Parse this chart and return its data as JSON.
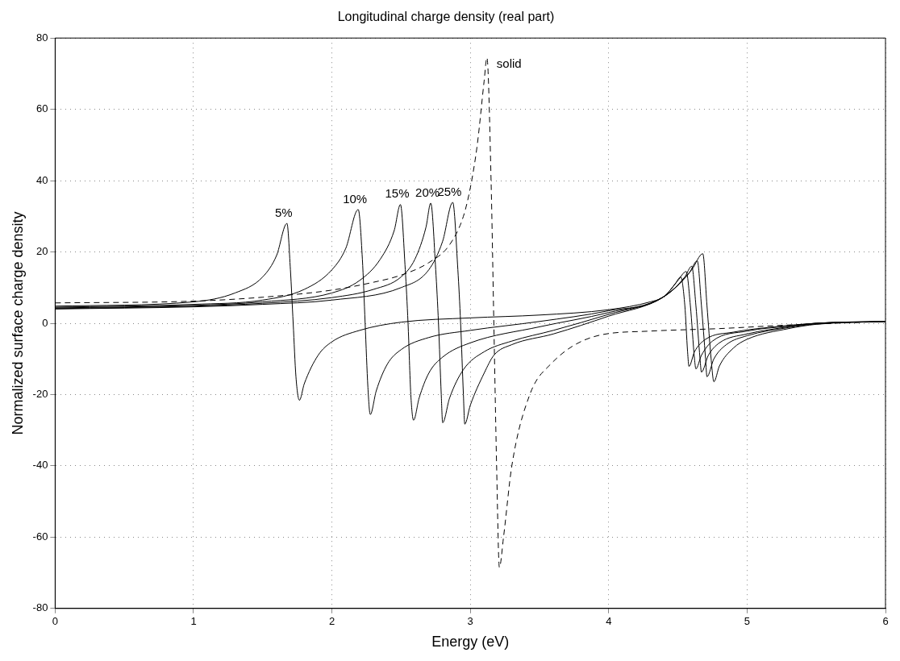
{
  "chart_data": {
    "type": "line",
    "title": "Longitudinal charge density (real part)",
    "xlabel": "Energy (eV)",
    "ylabel": "Normalized surface charge density",
    "xlim": [
      0,
      6
    ],
    "xticks": [
      0,
      1,
      2,
      3,
      4,
      5,
      6
    ],
    "ylim": [
      -80,
      80
    ],
    "yticks": [
      -80,
      -60,
      -40,
      -20,
      0,
      20,
      40,
      60,
      80
    ],
    "grid": true,
    "marker": "none",
    "series": [
      {
        "name": "5%",
        "color": "#000000",
        "line_style": "solid",
        "x": [
          0,
          1,
          1.3,
          1.5,
          1.6,
          1.675,
          1.7,
          1.72,
          1.74,
          1.765,
          1.8,
          1.9,
          2,
          2.2,
          2.5,
          3,
          3.5,
          4,
          4.3,
          4.4,
          4.48,
          4.52,
          4.55,
          4.57,
          4.58,
          4.62,
          4.7,
          4.9,
          5.2,
          5.5,
          6
        ],
        "values": [
          4.8,
          6,
          8.5,
          13,
          19,
          28,
          15,
          0,
          -15,
          -21.6,
          -17,
          -9,
          -5.2,
          -2,
          0.3,
          1.5,
          2.3,
          3.8,
          6,
          7.5,
          11,
          13,
          5,
          -8,
          -12.1,
          -8,
          -4.5,
          -2.5,
          -1,
          0,
          0.5
        ]
      },
      {
        "name": "10%",
        "color": "#000000",
        "line_style": "solid",
        "x": [
          0,
          1,
          1.5,
          1.8,
          2,
          2.1,
          2.19,
          2.22,
          2.24,
          2.26,
          2.277,
          2.32,
          2.4,
          2.5,
          2.7,
          3,
          3.5,
          4,
          4.4,
          4.5,
          4.56,
          4.59,
          4.62,
          4.63,
          4.67,
          4.75,
          5,
          5.3,
          5.5,
          6
        ],
        "values": [
          4.5,
          5.3,
          6.5,
          9.5,
          15,
          21,
          31.9,
          18,
          0,
          -18,
          -25.6,
          -19,
          -11.5,
          -7.4,
          -4,
          -2,
          0.5,
          3.5,
          7.5,
          12,
          14.5,
          5,
          -10,
          -12.8,
          -9,
          -5,
          -2.2,
          -0.8,
          0,
          0.5
        ]
      },
      {
        "name": "15%",
        "color": "#000000",
        "line_style": "solid",
        "x": [
          0,
          1,
          1.5,
          2,
          2.2,
          2.35,
          2.45,
          2.495,
          2.53,
          2.55,
          2.57,
          2.59,
          2.63,
          2.7,
          2.8,
          3,
          3.5,
          4,
          4.4,
          4.55,
          4.6,
          4.63,
          4.66,
          4.67,
          4.72,
          4.8,
          5,
          5.3,
          5.5,
          6
        ],
        "values": [
          4.3,
          5,
          6,
          8.5,
          12,
          18,
          26,
          33.3,
          15,
          0,
          -20,
          -27.2,
          -21,
          -14,
          -9.5,
          -5.5,
          -1,
          3,
          7.5,
          13,
          16,
          5,
          -10,
          -13.7,
          -9,
          -5.5,
          -3,
          -1,
          0,
          0.5
        ]
      },
      {
        "name": "20%",
        "color": "#000000",
        "line_style": "solid",
        "x": [
          0,
          1,
          1.5,
          2,
          2.3,
          2.5,
          2.6,
          2.68,
          2.714,
          2.75,
          2.77,
          2.79,
          2.8,
          2.85,
          2.95,
          3.1,
          3.3,
          3.6,
          4,
          4.4,
          4.58,
          4.64,
          4.67,
          4.7,
          4.71,
          4.76,
          4.85,
          5,
          5.3,
          5.5,
          6
        ],
        "values": [
          4.1,
          4.8,
          5.6,
          7.2,
          9.5,
          13,
          18,
          27,
          33.7,
          15,
          0,
          -20,
          -27.9,
          -21,
          -13,
          -8,
          -5,
          -2,
          2.5,
          7.5,
          14,
          17.5,
          5,
          -10,
          -15,
          -10,
          -6,
          -3.5,
          -1.2,
          -0.2,
          0.5
        ]
      },
      {
        "name": "25%",
        "color": "#000000",
        "line_style": "solid",
        "x": [
          0,
          1,
          1.5,
          2,
          2.5,
          2.7,
          2.8,
          2.873,
          2.91,
          2.93,
          2.95,
          2.96,
          3,
          3.1,
          3.17,
          3.3,
          3.6,
          4,
          4.4,
          4.6,
          4.68,
          4.71,
          4.74,
          4.76,
          4.8,
          4.9,
          5,
          5.3,
          5.5,
          6
        ],
        "values": [
          4,
          4.6,
          5.3,
          6.5,
          10,
          15,
          23,
          33.9,
          15,
          0,
          -20,
          -28.3,
          -23,
          -14,
          -9,
          -6,
          -3,
          2,
          7.5,
          15,
          19.5,
          5,
          -10,
          -16.4,
          -12,
          -7,
          -4.5,
          -1.5,
          -0.3,
          0.5
        ]
      },
      {
        "name": "solid",
        "color": "#000000",
        "line_style": "dashed",
        "x": [
          0,
          1,
          1.5,
          2,
          2.3,
          2.5,
          2.7,
          2.85,
          2.95,
          3,
          3.05,
          3.1,
          3.12,
          3.15,
          3.17,
          3.19,
          3.21,
          3.24,
          3.3,
          3.43,
          3.58,
          3.89,
          4.3,
          4.8,
          5.3,
          6
        ],
        "values": [
          5.7,
          6.2,
          7.3,
          9.3,
          11.5,
          13.5,
          17,
          22,
          30,
          38,
          50,
          68,
          74.5,
          40,
          0,
          -40,
          -68.5,
          -60,
          -40,
          -20,
          -11.5,
          -3.8,
          -2.2,
          -1.5,
          -0.5,
          0.5
        ]
      }
    ]
  }
}
